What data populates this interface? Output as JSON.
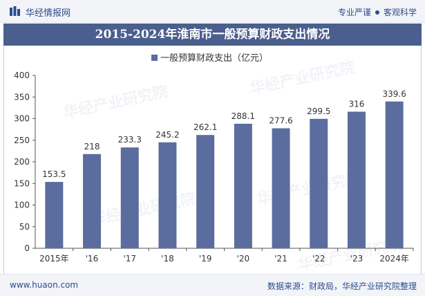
{
  "header": {
    "brand_name": "华经情报网",
    "tagline_left": "专业严谨",
    "tagline_right": "客观科学"
  },
  "colors": {
    "bar": "#5b6d9e",
    "title_bg": "#4a5f8e",
    "brand": "#2c4b8c"
  },
  "footer": {
    "url": "www.huaon.com",
    "source": "数据来源：财政局，华经产业研究院整理"
  },
  "watermark": "华经产业研究院",
  "chart_data": {
    "type": "bar",
    "title": "2015-2024年淮南市一般预算财政支出情况",
    "categories": [
      "2015年",
      "'16",
      "'17",
      "'18",
      "'19",
      "'20",
      "'21",
      "'22",
      "'23",
      "2024年"
    ],
    "series": [
      {
        "name": "一般预算财政支出（亿元）",
        "values": [
          153.5,
          218,
          233.3,
          245.2,
          262.1,
          288.1,
          277.6,
          299.5,
          316,
          339.6
        ]
      }
    ],
    "ylim": [
      0,
      400
    ],
    "yticks": [
      0,
      50,
      100,
      150,
      200,
      250,
      300,
      350,
      400
    ],
    "grid": false,
    "legend": "top-center",
    "xlabel": "",
    "ylabel": ""
  }
}
